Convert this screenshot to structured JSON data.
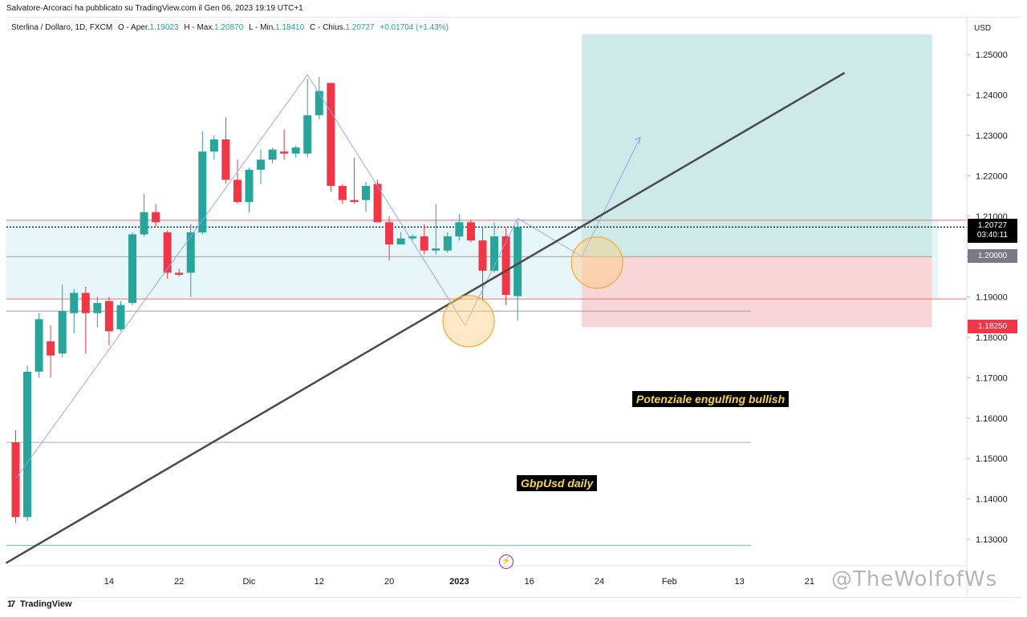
{
  "caption": "Salvatore-Arcoraci ha pubblicato su TradingView.com il Gen 06, 2023 19:19 UTC+1",
  "legend": {
    "symbol": "Sterlina / Dollaro, 1D, FXCM",
    "open_label": "O - Aper.",
    "open": "1.19023",
    "high_label": "H - Max.",
    "high": "1.20870",
    "low_label": "L - Min.",
    "low": "1.18410",
    "close_label": "C - Chius.",
    "close": "1.20727",
    "change": "+0.01704 (+1.43%)"
  },
  "axis": {
    "currency": "USD"
  },
  "price_tags": {
    "last_price": "1.20727",
    "countdown": "03:40:11",
    "entry": "1.20000",
    "stop": "1.18250"
  },
  "annotations": {
    "engulfing": "Potenziale engulfing bullish",
    "timeframe": "GbpUsd daily"
  },
  "branding": {
    "logo": "TradingView",
    "watermark": "@TheWolfofWs"
  },
  "colors": {
    "up": "#26a69a",
    "down": "#f23645",
    "trendline": "#4a4a4a",
    "profit_zone": "#cdeae8",
    "loss_zone": "#f8d6d8"
  },
  "chart_data": {
    "type": "candlestick",
    "title": "Sterlina / Dollaro, 1D, FXCM",
    "ylabel": "USD",
    "ylim": [
      1.125,
      1.255
    ],
    "y_ticks": [
      "1.13000",
      "1.14000",
      "1.15000",
      "1.16000",
      "1.17000",
      "1.18000",
      "1.19000",
      "1.20000",
      "1.21000",
      "1.22000",
      "1.23000",
      "1.24000",
      "1.25000"
    ],
    "x_ticks": [
      {
        "day": 8,
        "label": "14"
      },
      {
        "day": 14,
        "label": "22"
      },
      {
        "day": 20,
        "label": "Dic"
      },
      {
        "day": 26,
        "label": "12"
      },
      {
        "day": 32,
        "label": "20"
      },
      {
        "day": 38,
        "label": "2023"
      },
      {
        "day": 44,
        "label": "16"
      },
      {
        "day": 50,
        "label": "24"
      },
      {
        "day": 56,
        "label": "Feb"
      },
      {
        "day": 62,
        "label": "13"
      },
      {
        "day": 68,
        "label": "21"
      }
    ],
    "candles": [
      {
        "o": 1.154,
        "h": 1.157,
        "l": 1.134,
        "c": 1.1355
      },
      {
        "o": 1.1355,
        "h": 1.173,
        "l": 1.1345,
        "c": 1.1715
      },
      {
        "o": 1.1715,
        "h": 1.186,
        "l": 1.17,
        "c": 1.1845
      },
      {
        "o": 1.179,
        "h": 1.183,
        "l": 1.17,
        "c": 1.1755
      },
      {
        "o": 1.176,
        "h": 1.193,
        "l": 1.175,
        "c": 1.1865
      },
      {
        "o": 1.186,
        "h": 1.192,
        "l": 1.181,
        "c": 1.191
      },
      {
        "o": 1.191,
        "h": 1.1925,
        "l": 1.176,
        "c": 1.186
      },
      {
        "o": 1.186,
        "h": 1.19,
        "l": 1.1825,
        "c": 1.1885
      },
      {
        "o": 1.189,
        "h": 1.19,
        "l": 1.178,
        "c": 1.1815
      },
      {
        "o": 1.182,
        "h": 1.189,
        "l": 1.1815,
        "c": 1.188
      },
      {
        "o": 1.1885,
        "h": 1.206,
        "l": 1.188,
        "c": 1.2055
      },
      {
        "o": 1.2055,
        "h": 1.2155,
        "l": 1.205,
        "c": 1.211
      },
      {
        "o": 1.211,
        "h": 1.213,
        "l": 1.2075,
        "c": 1.2085
      },
      {
        "o": 1.206,
        "h": 1.2065,
        "l": 1.1945,
        "c": 1.196
      },
      {
        "o": 1.196,
        "h": 1.197,
        "l": 1.195,
        "c": 1.1955
      },
      {
        "o": 1.196,
        "h": 1.208,
        "l": 1.19,
        "c": 1.206
      },
      {
        "o": 1.206,
        "h": 1.231,
        "l": 1.2055,
        "c": 1.226
      },
      {
        "o": 1.226,
        "h": 1.23,
        "l": 1.224,
        "c": 1.229
      },
      {
        "o": 1.229,
        "h": 1.2345,
        "l": 1.218,
        "c": 1.219
      },
      {
        "o": 1.219,
        "h": 1.224,
        "l": 1.213,
        "c": 1.2135
      },
      {
        "o": 1.2135,
        "h": 1.222,
        "l": 1.211,
        "c": 1.2215
      },
      {
        "o": 1.2215,
        "h": 1.2265,
        "l": 1.218,
        "c": 1.224
      },
      {
        "o": 1.224,
        "h": 1.227,
        "l": 1.223,
        "c": 1.2265
      },
      {
        "o": 1.226,
        "h": 1.2315,
        "l": 1.224,
        "c": 1.2255
      },
      {
        "o": 1.2255,
        "h": 1.2275,
        "l": 1.2245,
        "c": 1.227
      },
      {
        "o": 1.2255,
        "h": 1.244,
        "l": 1.2245,
        "c": 1.235
      },
      {
        "o": 1.235,
        "h": 1.2445,
        "l": 1.234,
        "c": 1.241
      },
      {
        "o": 1.243,
        "h": 1.243,
        "l": 1.216,
        "c": 1.2175
      },
      {
        "o": 1.2175,
        "h": 1.218,
        "l": 1.213,
        "c": 1.214
      },
      {
        "o": 1.214,
        "h": 1.2245,
        "l": 1.213,
        "c": 1.2135
      },
      {
        "o": 1.214,
        "h": 1.2185,
        "l": 1.211,
        "c": 1.2175
      },
      {
        "o": 1.218,
        "h": 1.219,
        "l": 1.209,
        "c": 1.2085
      },
      {
        "o": 1.2085,
        "h": 1.21,
        "l": 1.199,
        "c": 1.203
      },
      {
        "o": 1.203,
        "h": 1.206,
        "l": 1.203,
        "c": 1.2045
      },
      {
        "o": 1.2045,
        "h": 1.2055,
        "l": 1.204,
        "c": 1.205
      },
      {
        "o": 1.205,
        "h": 1.208,
        "l": 1.2005,
        "c": 1.2015
      },
      {
        "o": 1.2015,
        "h": 1.213,
        "l": 1.2005,
        "c": 1.202
      },
      {
        "o": 1.2015,
        "h": 1.206,
        "l": 1.201,
        "c": 1.205
      },
      {
        "o": 1.205,
        "h": 1.2105,
        "l": 1.204,
        "c": 1.2085
      },
      {
        "o": 1.2085,
        "h": 1.209,
        "l": 1.2035,
        "c": 1.204
      },
      {
        "o": 1.204,
        "h": 1.2075,
        "l": 1.189,
        "c": 1.1965
      },
      {
        "o": 1.1965,
        "h": 1.2085,
        "l": 1.196,
        "c": 1.205
      },
      {
        "o": 1.205,
        "h": 1.207,
        "l": 1.188,
        "c": 1.1905
      },
      {
        "o": 1.1902,
        "h": 1.2087,
        "l": 1.1841,
        "c": 1.2073
      }
    ],
    "horizontal_levels": [
      1.209,
      1.2073,
      1.2,
      1.1895,
      1.1865,
      1.154,
      1.1285
    ],
    "trendline": [
      {
        "day": 0,
        "price": 1.1255
      },
      {
        "day": 71,
        "price": 1.2455
      }
    ],
    "zigzag": [
      {
        "day": 0,
        "price": 1.145
      },
      {
        "day": 25,
        "price": 1.245
      },
      {
        "day": 38.5,
        "price": 1.183
      },
      {
        "day": 43,
        "price": 1.2095
      },
      {
        "day": 48.5,
        "price": 1.2
      },
      {
        "day": 53.5,
        "price": 1.2295
      }
    ],
    "zones": {
      "profit": {
        "from_day": 48.5,
        "to_day": 78.5,
        "top": 1.255,
        "bottom": 1.2
      },
      "loss": {
        "from_day": 48.5,
        "to_day": 78.5,
        "top": 1.2,
        "bottom": 1.1825
      },
      "range_band": {
        "from_day": 0,
        "to_day": 79,
        "top": 1.209,
        "bottom": 1.1895
      }
    },
    "circles": [
      {
        "day": 38.8,
        "price": 1.184
      },
      {
        "day": 49.8,
        "price": 1.1985
      }
    ]
  }
}
